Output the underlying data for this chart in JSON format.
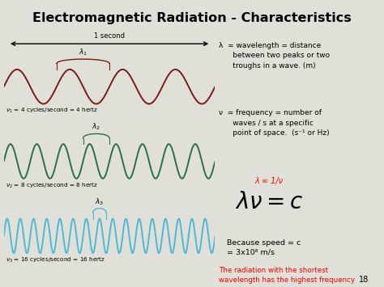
{
  "title": "Electromagnetic Radiation - Characteristics",
  "title_bg": "#d4e8a0",
  "bg_color": "#e0e0d8",
  "wave1_color": "#7a1a1a",
  "wave2_color": "#2a6e50",
  "wave3_color": "#4db8d8",
  "wave1_freq": 4,
  "wave2_freq": 8,
  "wave3_freq": 16,
  "wave1_label": "$\\nu_1$ = 4 cycles/second = 4 hertz",
  "wave2_label": "$\\nu_2$ = 8 cycles/second = 8 hertz",
  "wave3_label": "$\\nu_3$ = 16 cycles/second = 16 hertz",
  "lambda1_label": "$\\lambda_1$",
  "lambda2_label": "$\\lambda_2$",
  "lambda3_label": "$\\lambda_3$",
  "arrow_label": "1 second",
  "page_num": "18"
}
